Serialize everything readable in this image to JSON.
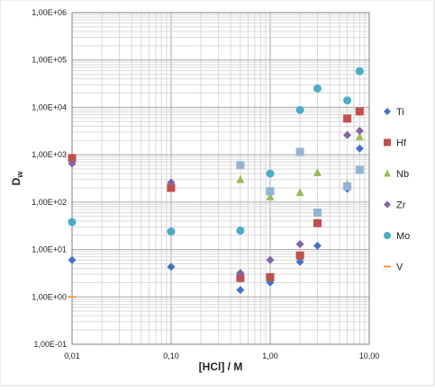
{
  "chart_data": {
    "type": "scatter",
    "title": "",
    "xlabel": "[HCl] / M",
    "ylabel": "D",
    "ylabel_sub": "w",
    "xscale": "log",
    "yscale": "log",
    "xlim": [
      0.01,
      10
    ],
    "ylim": [
      0.1,
      1000000
    ],
    "x_ticks": [
      0.01,
      0.1,
      1,
      10
    ],
    "x_tick_labels": [
      "0,01",
      "0,10",
      "1,00",
      "10,00"
    ],
    "y_ticks": [
      0.1,
      1,
      10,
      100,
      1000,
      10000,
      100000,
      1000000
    ],
    "y_tick_labels": [
      "1,00E-01",
      "1,00E+00",
      "1,00E+01",
      "1,00E+02",
      "1,00E+03",
      "1,00E+04",
      "1,00E+05",
      "1,00E+06"
    ],
    "grid": true,
    "legend_position": "right",
    "series": [
      {
        "name": "Ti",
        "color": "#4472c4",
        "marker": "diamond",
        "points": [
          [
            0.01,
            6
          ],
          [
            0.1,
            4.3
          ],
          [
            0.5,
            1.4
          ],
          [
            1,
            2.0
          ],
          [
            2,
            5.5
          ],
          [
            3,
            12
          ],
          [
            6,
            190
          ],
          [
            8,
            1350
          ]
        ]
      },
      {
        "name": "Hf",
        "color": "#c0504d",
        "marker": "square",
        "points": [
          [
            0.01,
            850
          ],
          [
            0.1,
            200
          ],
          [
            0.5,
            2.5
          ],
          [
            1,
            2.6
          ],
          [
            2,
            7.5
          ],
          [
            3,
            36
          ],
          [
            6,
            5800
          ],
          [
            8,
            8200
          ]
        ]
      },
      {
        "name": "Nb",
        "color": "#9bbb59",
        "marker": "triangle",
        "points": [
          [
            0.5,
            300
          ],
          [
            1,
            130
          ],
          [
            2,
            160
          ],
          [
            3,
            420
          ],
          [
            6,
            240
          ],
          [
            8,
            2400
          ]
        ]
      },
      {
        "name": "Zr",
        "color": "#8064a2",
        "marker": "diamond",
        "points": [
          [
            0.01,
            650
          ],
          [
            0.1,
            260
          ],
          [
            0.5,
            3.2
          ],
          [
            1,
            6
          ],
          [
            2,
            13
          ],
          [
            6,
            2600
          ],
          [
            8,
            3200
          ]
        ]
      },
      {
        "name": "Mo",
        "color": "#4bacc6",
        "marker": "circle",
        "points": [
          [
            0.01,
            38
          ],
          [
            0.1,
            24
          ],
          [
            0.5,
            25
          ],
          [
            1,
            400
          ],
          [
            2,
            8800
          ],
          [
            3,
            25000
          ],
          [
            6,
            14000
          ],
          [
            8,
            58000
          ]
        ]
      },
      {
        "name": "V",
        "color": "#f79646",
        "marker": "dash",
        "points": [
          [
            0.01,
            1.0
          ]
        ]
      },
      {
        "name": "",
        "color": "#95b3d7",
        "marker": "square",
        "points": [
          [
            0.5,
            600
          ],
          [
            1,
            170
          ],
          [
            2,
            1150
          ],
          [
            3,
            60
          ],
          [
            6,
            215
          ],
          [
            8,
            480
          ]
        ]
      }
    ]
  }
}
